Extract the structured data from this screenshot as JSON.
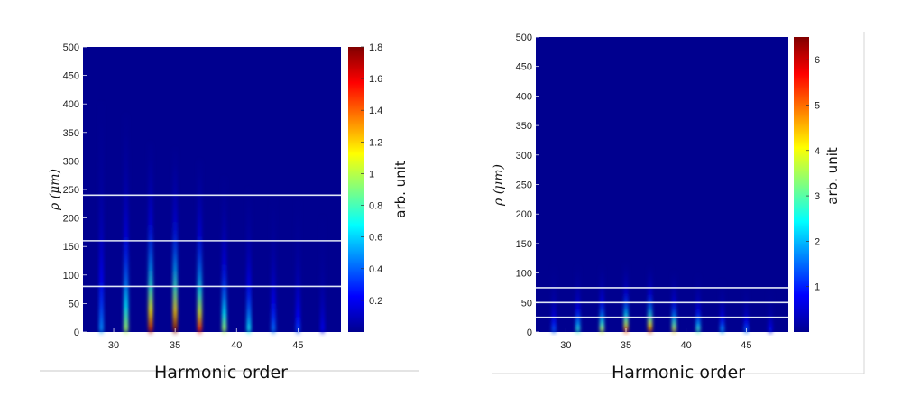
{
  "chart_data": [
    {
      "type": "heatmap",
      "xlabel": "Harmonic order",
      "ylabel": "ρ (μm)",
      "colorbar_label": "arb. unit",
      "xlim": [
        27.5,
        48.5
      ],
      "ylim": [
        0,
        500
      ],
      "xticks": [
        30,
        35,
        40,
        45
      ],
      "yticks": [
        0,
        50,
        100,
        150,
        200,
        250,
        300,
        350,
        400,
        450,
        500
      ],
      "clim": [
        0,
        1.8
      ],
      "cbticks": [
        0.2,
        0.4,
        0.6,
        0.8,
        1,
        1.2,
        1.4,
        1.6,
        1.8
      ],
      "colormap": "jet",
      "reference_lines_y": [
        80,
        160,
        240
      ],
      "harmonics": [
        {
          "order": 29,
          "peak": 0.5,
          "extent": 400
        },
        {
          "order": 31,
          "peak": 1.0,
          "extent": 380
        },
        {
          "order": 33,
          "peak": 1.7,
          "extent": 330
        },
        {
          "order": 35,
          "peak": 1.8,
          "extent": 320
        },
        {
          "order": 37,
          "peak": 1.6,
          "extent": 300
        },
        {
          "order": 39,
          "peak": 1.0,
          "extent": 270
        },
        {
          "order": 41,
          "peak": 0.7,
          "extent": 250
        },
        {
          "order": 43,
          "peak": 0.45,
          "extent": 240
        },
        {
          "order": 45,
          "peak": 0.35,
          "extent": 230
        },
        {
          "order": 47,
          "peak": 0.2,
          "extent": 200
        }
      ]
    },
    {
      "type": "heatmap",
      "xlabel": "Harmonic order",
      "ylabel": "ρ (μm)",
      "colorbar_label": "arb. unit",
      "xlim": [
        27.5,
        48.5
      ],
      "ylim": [
        0,
        500
      ],
      "xticks": [
        30,
        35,
        40,
        45
      ],
      "yticks": [
        0,
        50,
        100,
        150,
        200,
        250,
        300,
        350,
        400,
        450,
        500
      ],
      "clim": [
        0,
        6.5
      ],
      "cbticks": [
        1,
        2,
        3,
        4,
        5,
        6
      ],
      "colormap": "jet",
      "reference_lines_y": [
        25,
        50,
        75
      ],
      "harmonics": [
        {
          "order": 29,
          "peak": 1.5,
          "extent": 110
        },
        {
          "order": 31,
          "peak": 2.8,
          "extent": 110
        },
        {
          "order": 33,
          "peak": 4.0,
          "extent": 110
        },
        {
          "order": 35,
          "peak": 5.5,
          "extent": 115
        },
        {
          "order": 37,
          "peak": 6.0,
          "extent": 110
        },
        {
          "order": 39,
          "peak": 4.5,
          "extent": 100
        },
        {
          "order": 41,
          "peak": 3.0,
          "extent": 95
        },
        {
          "order": 43,
          "peak": 2.0,
          "extent": 85
        },
        {
          "order": 45,
          "peak": 1.6,
          "extent": 80
        },
        {
          "order": 47,
          "peak": 1.0,
          "extent": 70
        }
      ]
    }
  ]
}
